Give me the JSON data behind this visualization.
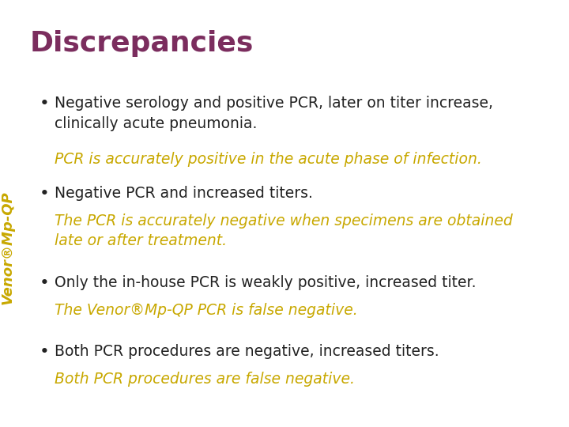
{
  "title": "Discrepancies",
  "title_color": "#7B2D5E",
  "title_fontsize": 26,
  "title_bold": true,
  "background_color": "#FFFFFF",
  "bullet_color": "#222222",
  "highlight_color": "#C8A800",
  "bullet_fontsize": 13.5,
  "highlight_fontsize": 13.5,
  "sidebar_text": "Venor®Mp-QP",
  "sidebar_color": "#C8A800",
  "sidebar_fontsize": 13,
  "bullets": [
    {
      "main": "Negative serology and positive PCR, later on titer increase,\nclinically acute pneumonia.",
      "highlight": "PCR is accurately positive in the acute phase of infection."
    },
    {
      "main": "Negative PCR and increased titers.",
      "highlight": "The PCR is accurately negative when specimens are obtained\nlate or after treatment."
    },
    {
      "main": "Only the in-house PCR is weakly positive, increased titer.",
      "highlight": "The Venor®Mp-QP PCR is false negative."
    },
    {
      "main": "Both PCR procedures are negative, increased titers.",
      "highlight": "Both PCR procedures are false negative."
    }
  ]
}
